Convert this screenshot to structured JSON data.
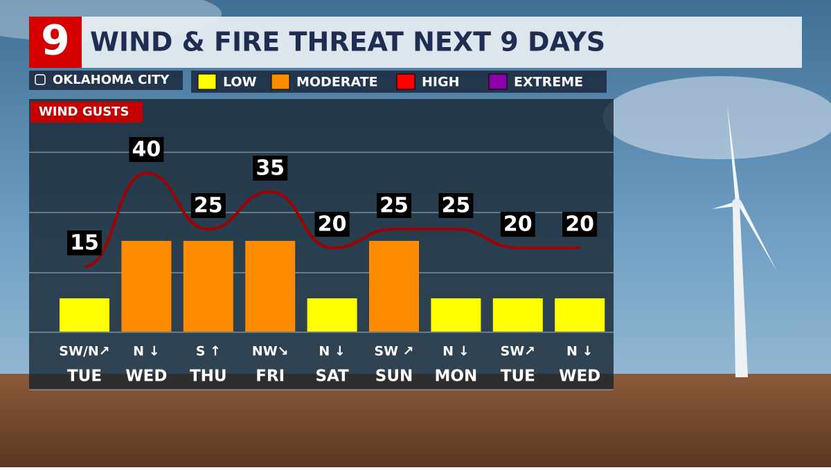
{
  "chart_data": {
    "type": "bar-line",
    "logo": "9",
    "title": "WIND & FIRE THREAT NEXT 9 DAYS",
    "location": "OKLAHOMA CITY",
    "legend": [
      {
        "name": "LOW",
        "color": "#ffff00"
      },
      {
        "name": "MODERATE",
        "color": "#ff8c00"
      },
      {
        "name": "HIGH",
        "color": "#ff0000"
      },
      {
        "name": "EXTREME",
        "color": "#8b00a8"
      }
    ],
    "series_label": "WIND GUSTS",
    "line_color": "#a00000",
    "categories": [
      "TUE",
      "WED",
      "THU",
      "FRI",
      "SAT",
      "SUN",
      "MON",
      "TUE",
      "WED"
    ],
    "directions": [
      "SW/N↗",
      "N ↓",
      "S ↑",
      "NW↘",
      "N ↓",
      "SW ↗",
      "N ↓",
      "SW↗",
      "N ↓"
    ],
    "threat": [
      "LOW",
      "MODERATE",
      "MODERATE",
      "MODERATE",
      "LOW",
      "MODERATE",
      "LOW",
      "LOW",
      "LOW"
    ],
    "values": [
      15,
      40,
      25,
      35,
      20,
      25,
      25,
      20,
      20
    ]
  }
}
